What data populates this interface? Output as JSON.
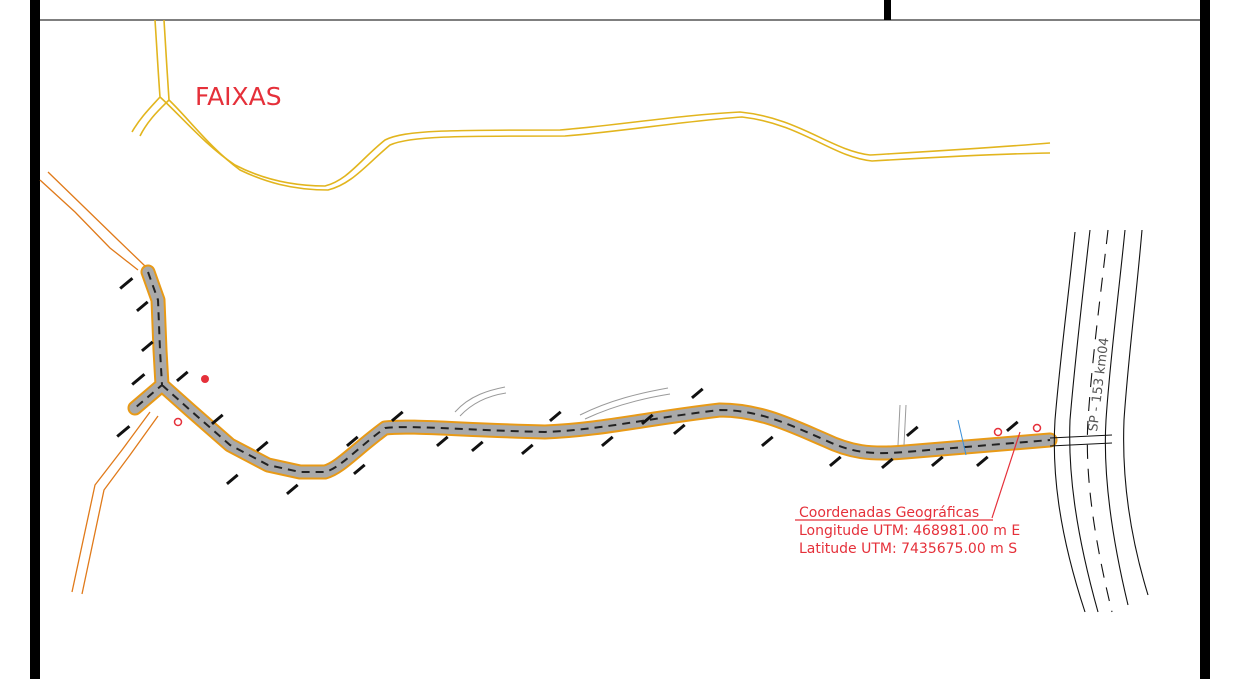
{
  "labels": {
    "faixas": "FAIXAS",
    "highway": "SP - 153  km04"
  },
  "coordinates": {
    "title": "Coordenadas Geográficas",
    "longitude": "Longitude UTM: 468981.00 m E",
    "latitude": "Latitude UTM: 7435675.00 m S"
  },
  "colors": {
    "background": "#ffffff",
    "frame": "#000000",
    "faixas_lines": "#e2b51e",
    "boundary": "#e07a1a",
    "road_fill": "#a9a9a9",
    "road_border": "#e89a17",
    "annotation_red": "#e5303a",
    "highway_lines": "#000000",
    "aux_lines": "#9a9a9a"
  }
}
